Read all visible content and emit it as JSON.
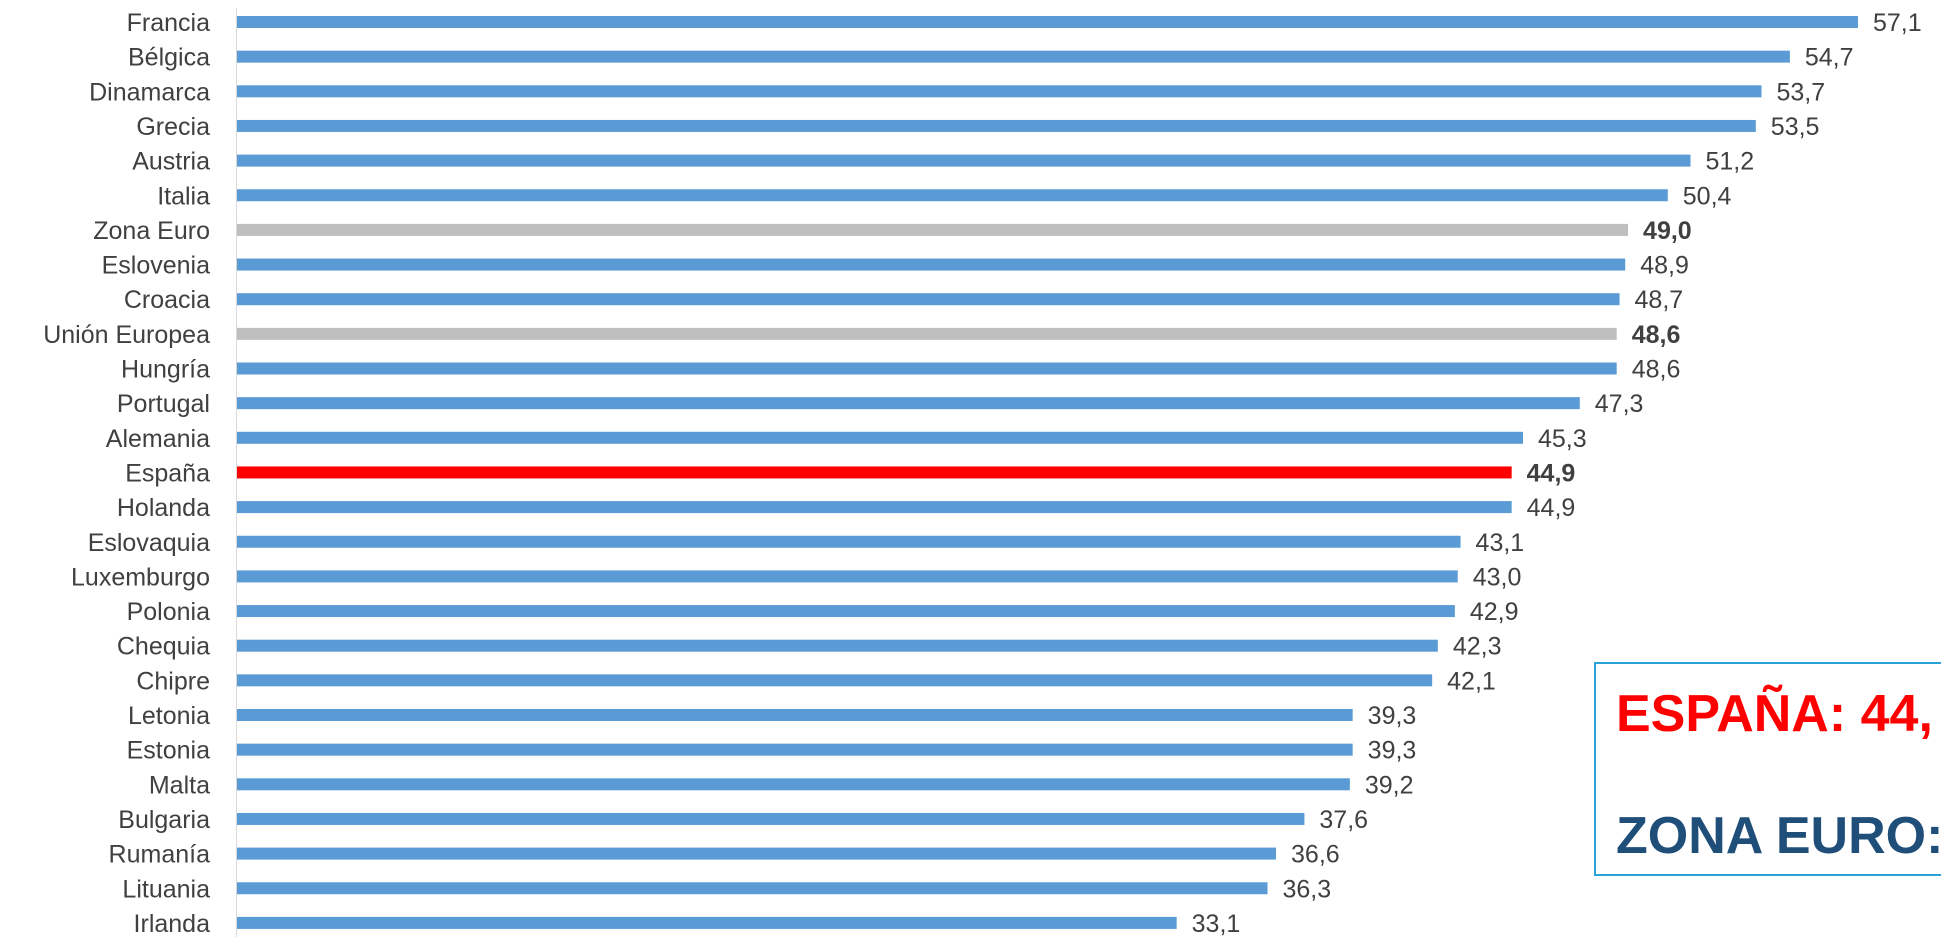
{
  "chart_data": {
    "type": "bar",
    "orientation": "horizontal",
    "categories": [
      "Francia",
      "Bélgica",
      "Dinamarca",
      "Grecia",
      "Austria",
      "Italia",
      "Zona Euro",
      "Eslovenia",
      "Croacia",
      "Unión Europea",
      "Hungría",
      "Portugal",
      "Alemania",
      "España",
      "Holanda",
      "Eslovaquia",
      "Luxemburgo",
      "Polonia",
      "Chequia",
      "Chipre",
      "Letonia",
      "Estonia",
      "Malta",
      "Bulgaria",
      "Rumanía",
      "Lituania",
      "Irlanda"
    ],
    "values": [
      57.1,
      54.7,
      53.7,
      53.5,
      51.2,
      50.4,
      49.0,
      48.9,
      48.7,
      48.6,
      48.6,
      47.3,
      45.3,
      44.9,
      44.9,
      43.1,
      43.0,
      42.9,
      42.3,
      42.1,
      39.3,
      39.3,
      39.2,
      37.6,
      36.6,
      36.3,
      33.1
    ],
    "value_labels": [
      "57,1",
      "54,7",
      "53,7",
      "53,5",
      "51,2",
      "50,4",
      "49,0",
      "48,9",
      "48,7",
      "48,6",
      "48,6",
      "47,3",
      "45,3",
      "44,9",
      "44,9",
      "43,1",
      "43,0",
      "42,9",
      "42,3",
      "42,1",
      "39,3",
      "39,3",
      "39,2",
      "37,6",
      "36,6",
      "36,3",
      "33,1"
    ],
    "bold_labels": [
      "Zona Euro",
      "Unión Europea",
      "España"
    ],
    "xlim": [
      0,
      57.1
    ],
    "title": "",
    "xlabel": "",
    "ylabel": "",
    "grid": false,
    "legend": "none",
    "colors": {
      "default": "#5b9bd5",
      "aggregate": "#bfbfbf",
      "highlight": "#ff0000",
      "label_text": "#404040"
    },
    "bar_colors": {
      "Zona Euro": "aggregate",
      "Unión Europea": "aggregate",
      "España": "highlight"
    }
  },
  "callout": {
    "line1": "ESPAÑA: 44,",
    "line2": "ZONA EURO:",
    "line1_color": "#ff0000",
    "line2_color": "#1f4e79",
    "border_color": "#29a3d9"
  }
}
